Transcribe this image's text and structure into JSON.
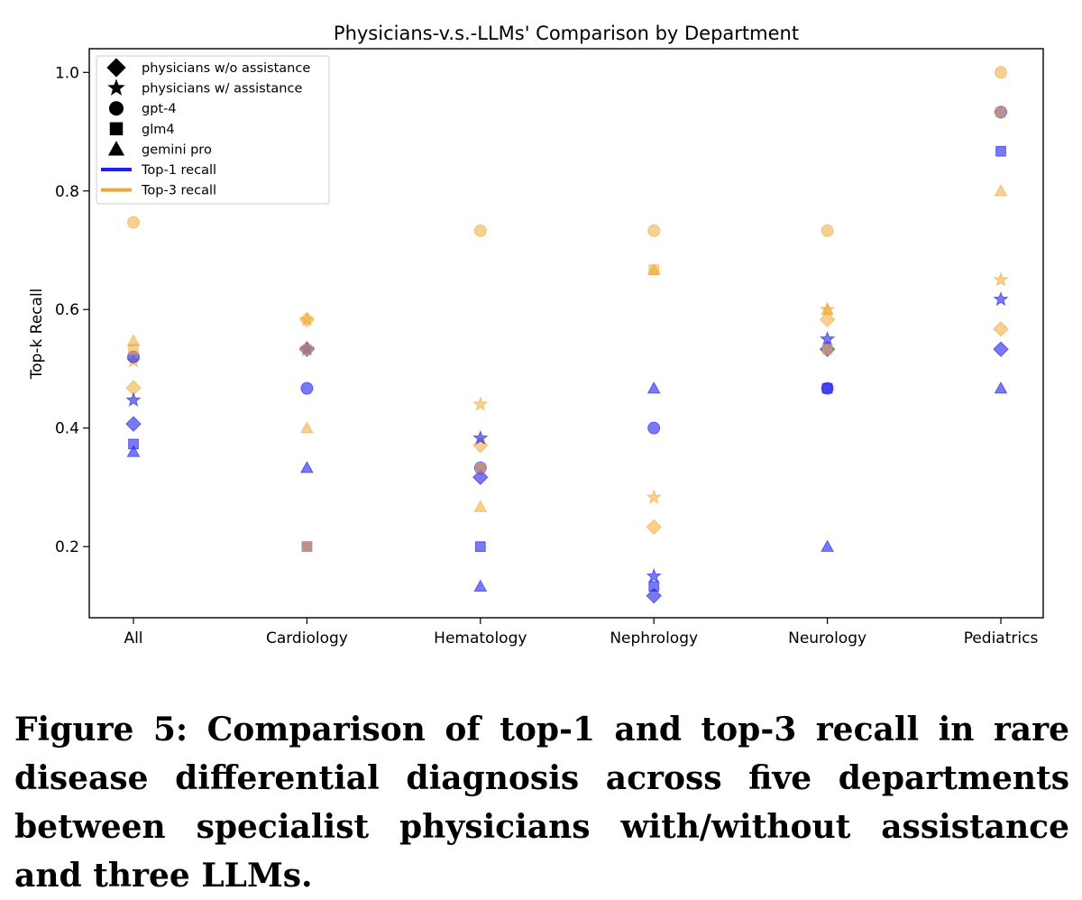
{
  "caption": "Figure 5: Comparison of top-1 and top-3 recall in rare disease differential diagnosis across five departments between specialist physicians with/without assistance and three LLMs.",
  "colors": {
    "top1": "#1f1fee",
    "top3": "#f0a733"
  },
  "chart_data": {
    "type": "scatter",
    "title": "Physicians-v.s.-LLMs' Comparison by Department",
    "xlabel": "",
    "ylabel": "Top-k Recall",
    "categories": [
      "All",
      "Cardiology",
      "Hematology",
      "Nephrology",
      "Neurology",
      "Pediatrics"
    ],
    "ylim": [
      0.08,
      1.04
    ],
    "yticks": [
      "0.2",
      "0.4",
      "0.6",
      "0.8",
      "1.0"
    ],
    "grid": false,
    "legend_position": "upper-left",
    "legend": [
      {
        "label": "physicians w/o assistance",
        "kind": "marker",
        "shape": "diamond"
      },
      {
        "label": "physicians w/ assistance",
        "kind": "marker",
        "shape": "star"
      },
      {
        "label": "gpt-4",
        "kind": "marker",
        "shape": "circle"
      },
      {
        "label": "glm4",
        "kind": "marker",
        "shape": "square"
      },
      {
        "label": "gemini pro",
        "kind": "marker",
        "shape": "triangle"
      },
      {
        "label": "Top-1 recall",
        "kind": "line",
        "color": "#1f1fee"
      },
      {
        "label": "Top-3 recall",
        "kind": "line",
        "color": "#f0a733"
      }
    ],
    "series": [
      {
        "name": "physicians w/o assistance",
        "shape": "diamond",
        "metric": "Top-1 recall",
        "values": [
          0.407,
          0.533,
          0.317,
          0.117,
          0.533,
          0.533
        ]
      },
      {
        "name": "physicians w/o assistance",
        "shape": "diamond",
        "metric": "Top-3 recall",
        "values": [
          0.468,
          0.583,
          0.371,
          0.233,
          0.583,
          0.567
        ]
      },
      {
        "name": "physicians w/ assistance",
        "shape": "star",
        "metric": "Top-1 recall",
        "values": [
          0.447,
          0.533,
          0.383,
          0.15,
          0.55,
          0.617
        ]
      },
      {
        "name": "physicians w/ assistance",
        "shape": "star",
        "metric": "Top-3 recall",
        "values": [
          0.513,
          0.583,
          0.44,
          0.283,
          0.6,
          0.65
        ]
      },
      {
        "name": "gpt-4",
        "shape": "circle",
        "metric": "Top-1 recall",
        "values": [
          0.52,
          0.467,
          0.333,
          0.4,
          0.467,
          0.933
        ]
      },
      {
        "name": "gpt-4",
        "shape": "circle",
        "metric": "Top-3 recall",
        "values": [
          0.747,
          0.533,
          0.733,
          0.733,
          0.733,
          1.0
        ]
      },
      {
        "name": "glm4",
        "shape": "square",
        "metric": "Top-1 recall",
        "values": [
          0.373,
          0.2,
          0.2,
          0.133,
          0.467,
          0.867
        ]
      },
      {
        "name": "glm4",
        "shape": "square",
        "metric": "Top-3 recall",
        "values": [
          0.533,
          0.2,
          0.333,
          0.667,
          0.533,
          0.933
        ]
      },
      {
        "name": "gemini pro",
        "shape": "triangle",
        "metric": "Top-1 recall",
        "values": [
          0.36,
          0.333,
          0.133,
          0.467,
          0.2,
          0.467
        ]
      },
      {
        "name": "gemini pro",
        "shape": "triangle",
        "metric": "Top-3 recall",
        "values": [
          0.547,
          0.4,
          0.267,
          0.667,
          0.6,
          0.8
        ]
      }
    ]
  }
}
